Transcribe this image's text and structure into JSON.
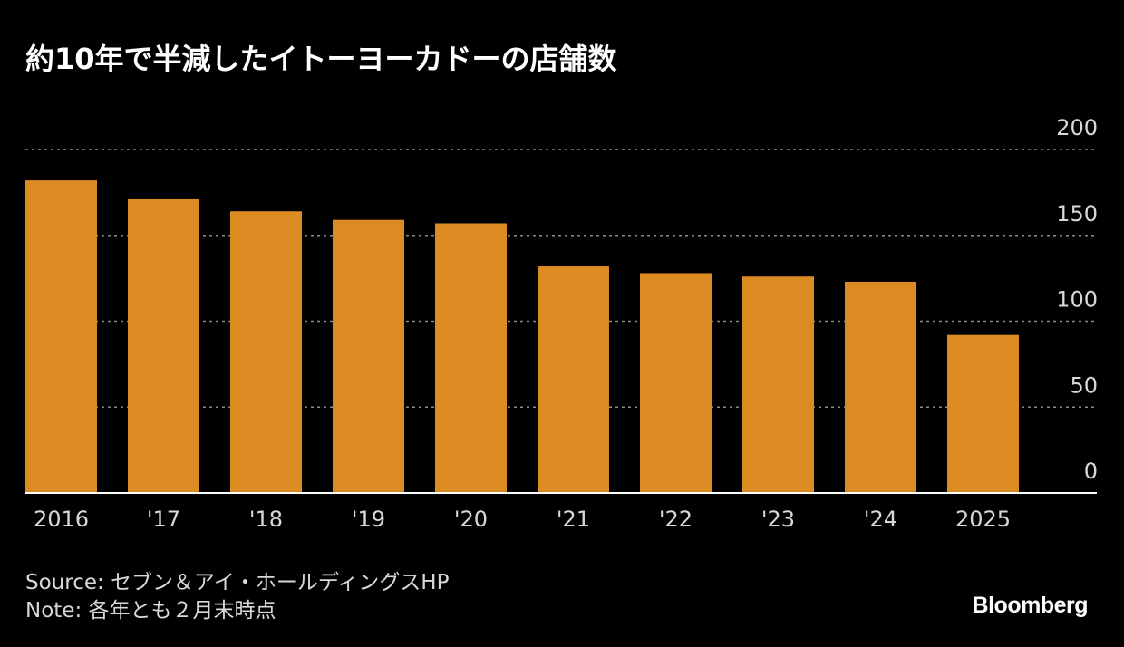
{
  "chart_data": {
    "type": "bar",
    "title": "約10年で半減したイトーヨーカドーの店舗数",
    "categories": [
      "2016",
      "'17",
      "'18",
      "'19",
      "'20",
      "'21",
      "'22",
      "'23",
      "'24",
      "2025"
    ],
    "values": [
      182,
      171,
      164,
      159,
      157,
      132,
      128,
      126,
      123,
      92
    ],
    "ylim": [
      0,
      200
    ],
    "yticks": [
      0,
      50,
      100,
      150,
      200
    ],
    "grid": true,
    "bar_color": "#dc8a22"
  },
  "footer": {
    "source": "Source: セブン＆アイ・ホールディングスHP",
    "note": "Note: 各年とも２月末時点"
  },
  "brand": "Bloomberg"
}
